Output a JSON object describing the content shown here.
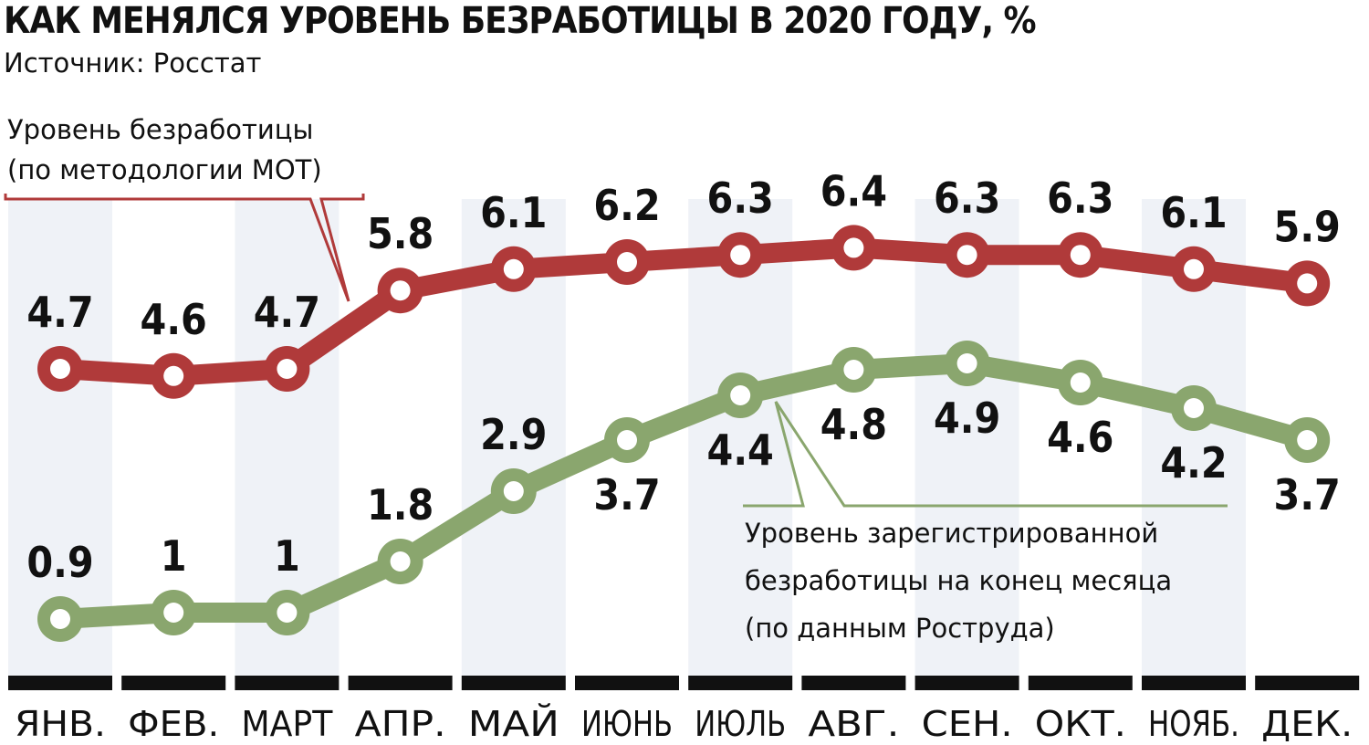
{
  "title": "КАК МЕНЯЛСЯ УРОВЕНЬ БЕЗРАБОТИЦЫ В 2020 ГОДУ, %",
  "subtitle": "Источник: Росстат",
  "chart_data": {
    "type": "line",
    "categories": [
      "ЯНВ.",
      "ФЕВ.",
      "МАРТ",
      "АПР.",
      "МАЙ",
      "ИЮНЬ",
      "ИЮЛЬ",
      "АВГ.",
      "СЕН.",
      "ОКТ.",
      "НОЯБ.",
      "ДЕК."
    ],
    "series": [
      {
        "name": "Уровень безработицы (по методологии МОТ)",
        "name_lines": [
          "Уровень безработицы",
          "(по методологии МОТ)"
        ],
        "labels": [
          "4.7",
          "4.6",
          "4.7",
          "5.8",
          "6.1",
          "6.2",
          "6.3",
          "6.4",
          "6.3",
          "6.3",
          "6.1",
          "5.9"
        ],
        "values": [
          4.7,
          4.6,
          4.7,
          5.8,
          6.1,
          6.2,
          6.3,
          6.4,
          6.3,
          6.3,
          6.1,
          5.9
        ],
        "color": "#b03a3a"
      },
      {
        "name": "Уровень зарегистрированной безработицы на конец месяца (по данным Роструда)",
        "name_lines": [
          "Уровень зарегистрированной",
          "безработицы на конец месяца",
          "(по данным Роструда)"
        ],
        "labels": [
          "0.9",
          "1",
          "1",
          "1.8",
          "2.9",
          "3.7",
          "4.4",
          "4.8",
          "4.9",
          "4.6",
          "4.2",
          "3.7"
        ],
        "values": [
          0.9,
          1.0,
          1.0,
          1.8,
          2.9,
          3.7,
          4.4,
          4.8,
          4.9,
          4.6,
          4.2,
          3.7
        ],
        "color": "#8aa66e"
      }
    ],
    "grid": false,
    "column_bands": true,
    "band_color": "#eff2f7"
  }
}
